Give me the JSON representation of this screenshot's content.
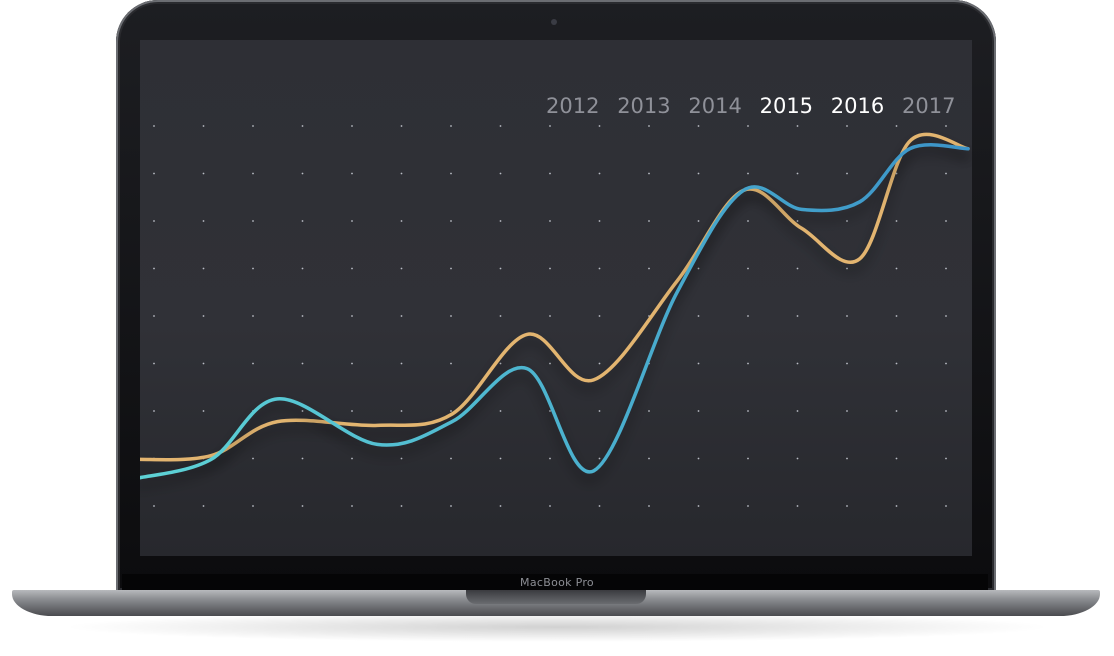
{
  "device": {
    "brand": "MacBook Pro"
  },
  "chart_data": {
    "type": "line",
    "title": "",
    "xlabel": "",
    "ylabel": "",
    "tick_labels": [
      "2012",
      "2013",
      "2014",
      "2015",
      "2016",
      "2017"
    ],
    "highlighted_ticks": [
      "2015",
      "2016"
    ],
    "grid": "dotted",
    "ylim": [
      0,
      10
    ],
    "series": [
      {
        "color": "#e3b56f",
        "x": [
          0,
          0.09,
          0.17,
          0.29,
          0.38,
          0.47,
          0.55,
          0.65,
          0.73,
          0.8,
          0.87,
          0.93,
          1.0
        ],
        "values": [
          1.2,
          1.3,
          2.2,
          2.1,
          2.4,
          4.5,
          3.3,
          5.9,
          8.3,
          7.3,
          6.5,
          9.6,
          9.4
        ]
      },
      {
        "color": "#4aa9cf",
        "x": [
          0,
          0.09,
          0.17,
          0.29,
          0.38,
          0.47,
          0.55,
          0.65,
          0.73,
          0.8,
          0.87,
          0.93,
          1.0
        ],
        "values": [
          0.7,
          1.2,
          2.8,
          1.6,
          2.2,
          3.6,
          0.9,
          5.6,
          8.3,
          7.8,
          8.0,
          9.4,
          9.4
        ]
      }
    ]
  }
}
